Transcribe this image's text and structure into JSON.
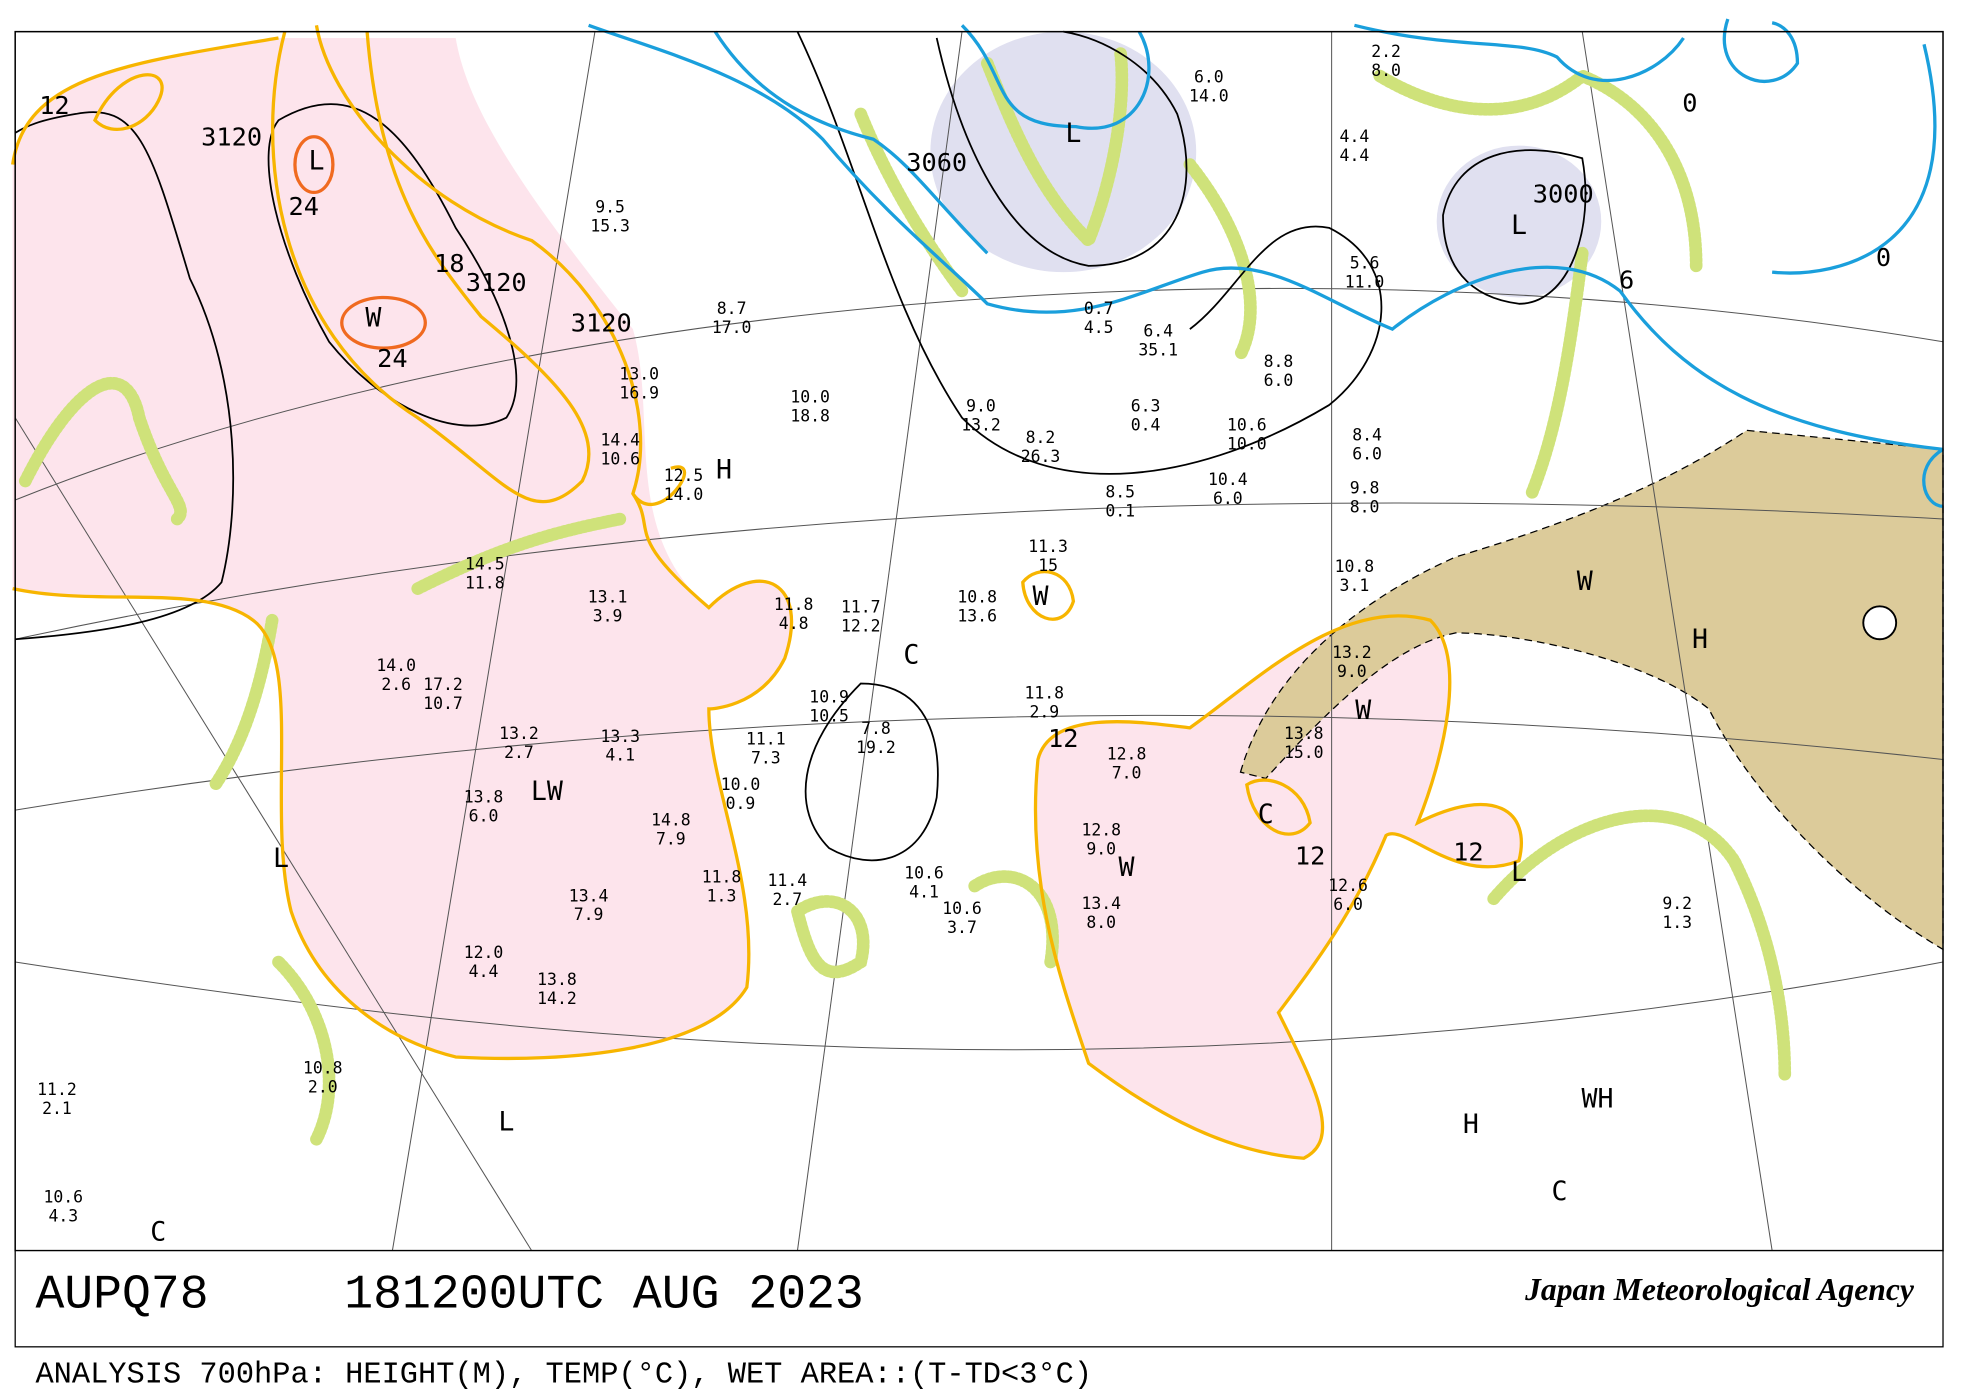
{
  "header": {
    "code": "AUPQ78",
    "time": "181200UTC AUG 2023",
    "agency": "Japan Meteorological Agency"
  },
  "footer": "ANALYSIS 700hPa: HEIGHT(M), TEMP(°C), WET AREA::(T-TD<3°C)",
  "contour_labels": [
    "3120",
    "3120",
    "3120",
    "3000",
    "3060"
  ],
  "isotherm_labels": [
    "12",
    "24",
    "24",
    "18",
    "12",
    "12",
    "12",
    "0",
    "0",
    "6"
  ],
  "systems": [
    "L",
    "L",
    "L",
    "W",
    "L",
    "L",
    "L",
    "LW",
    "W",
    "W",
    "W",
    "W",
    "C",
    "C",
    "C",
    "C",
    "H",
    "H",
    "WH",
    "H"
  ],
  "stations": [
    [
      "9.5",
      "15.3"
    ],
    [
      "8.7",
      "17.0"
    ],
    [
      "10.0",
      "18.8"
    ],
    [
      "8.2",
      "26.3"
    ],
    [
      "8.5",
      "0.1"
    ],
    [
      "10.4",
      "6.0"
    ],
    [
      "10.6",
      "10.0"
    ],
    [
      "8.8",
      "6.0"
    ],
    [
      "5.6",
      "11.0"
    ],
    [
      "8.4",
      "6.0"
    ],
    [
      "9.8",
      "8.0"
    ],
    [
      "10.8",
      "3.1"
    ],
    [
      "13.2",
      "9.0"
    ],
    [
      "13.8",
      "15.0"
    ],
    [
      "12.6",
      "6.0"
    ],
    [
      "9.2",
      "1.3"
    ],
    [
      "12.8",
      "9.0"
    ],
    [
      "13.4",
      "8.0"
    ],
    [
      "12.8",
      "7.0"
    ],
    [
      "11.8",
      "2.9"
    ],
    [
      "11.3",
      "15"
    ],
    [
      "10.8",
      "13.6"
    ],
    [
      "11.7",
      "12.2"
    ],
    [
      "11.8",
      "4.8"
    ],
    [
      "13.1",
      "3.9"
    ],
    [
      "14.5",
      "11.8"
    ],
    [
      "14.0",
      "2.6"
    ],
    [
      "17.2",
      "10.7"
    ],
    [
      "13.2",
      "2.7"
    ],
    [
      "13.3",
      "4.1"
    ],
    [
      "13.8",
      "6.0"
    ],
    [
      "14.8",
      "7.9"
    ],
    [
      "13.4",
      "7.9"
    ],
    [
      "12.0",
      "4.4"
    ],
    [
      "13.8",
      "14.2"
    ],
    [
      "11.8",
      "1.3"
    ],
    [
      "11.4",
      "2.7"
    ],
    [
      "10.6",
      "4.1"
    ],
    [
      "10.6",
      "3.7"
    ],
    [
      "10.0",
      "0.9"
    ],
    [
      "10.9",
      "10.5"
    ],
    [
      "7.8",
      "19.2"
    ],
    [
      "11.1",
      "7.3"
    ],
    [
      "13.0",
      "16.9"
    ],
    [
      "12.5",
      "14.0"
    ],
    [
      "14.4",
      "10.6"
    ],
    [
      "9.0",
      "13.2"
    ],
    [
      "6.3",
      "0.4"
    ],
    [
      "6.0",
      "14.0"
    ],
    [
      "4.4",
      "4.4"
    ],
    [
      "2.2",
      "8.0"
    ],
    [
      "10.8",
      "2.0"
    ],
    [
      "11.2",
      "2.1"
    ],
    [
      "10.6",
      "4.3"
    ],
    [
      "0.7",
      "4.5"
    ],
    [
      "6.4",
      "35.1"
    ]
  ]
}
